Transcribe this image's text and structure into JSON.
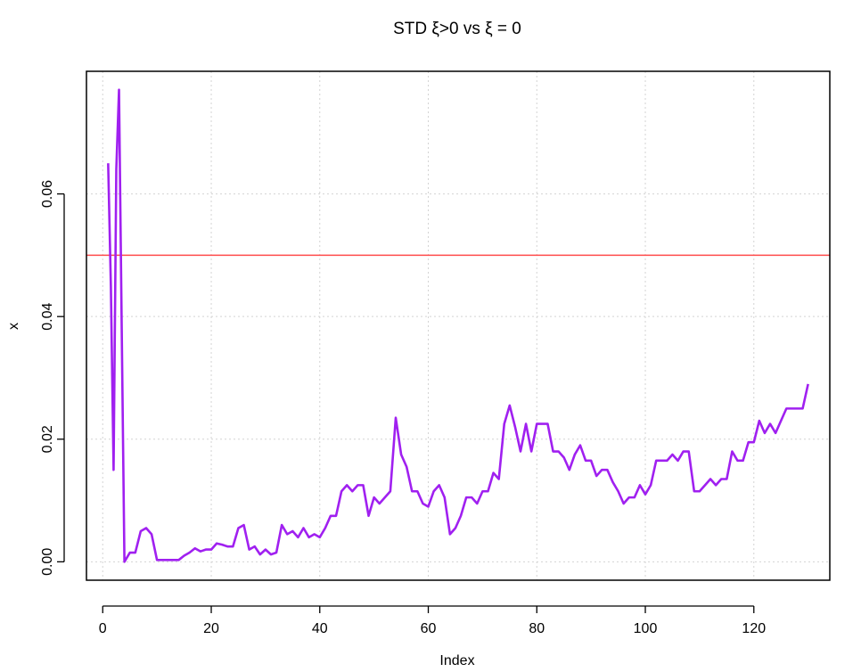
{
  "chart_data": {
    "type": "line",
    "title": "STD ξ>0 vs ξ = 0",
    "xlabel": "Index",
    "ylabel": "x",
    "xlim": [
      -3,
      134
    ],
    "ylim": [
      -0.003,
      0.08
    ],
    "xticks": [
      0,
      20,
      40,
      60,
      80,
      100,
      120
    ],
    "yticks": [
      0.0,
      0.02,
      0.04,
      0.06
    ],
    "ytick_labels": [
      "0.00",
      "0.02",
      "0.04",
      "0.06"
    ],
    "grid": true,
    "reference_line": {
      "y": 0.05,
      "color": "#ff4b4b"
    },
    "series": [
      {
        "color": "#a020f0",
        "x": [
          1,
          1.5,
          2,
          2.5,
          3,
          3.5,
          4,
          5,
          6,
          7,
          8,
          9,
          10,
          11,
          12,
          13,
          14,
          15,
          16,
          17,
          18,
          19,
          20,
          21,
          22,
          23,
          24,
          25,
          26,
          27,
          28,
          29,
          30,
          31,
          32,
          33,
          34,
          35,
          36,
          37,
          38,
          39,
          40,
          41,
          42,
          43,
          44,
          45,
          46,
          47,
          48,
          49,
          50,
          51,
          52,
          53,
          54,
          55,
          56,
          57,
          58,
          59,
          60,
          61,
          62,
          63,
          64,
          65,
          66,
          67,
          68,
          69,
          70,
          71,
          72,
          73,
          74,
          75,
          76,
          77,
          78,
          79,
          80,
          81,
          82,
          83,
          84,
          85,
          86,
          87,
          88,
          89,
          90,
          91,
          92,
          93,
          94,
          95,
          96,
          97,
          98,
          99,
          100,
          101,
          102,
          103,
          104,
          105,
          106,
          107,
          108,
          109,
          110,
          111,
          112,
          113,
          114,
          115,
          116,
          117,
          118,
          119,
          120,
          121,
          122,
          123,
          124,
          125,
          126,
          127,
          128,
          129,
          130
        ],
        "y": [
          0.065,
          0.045,
          0.015,
          0.064,
          0.077,
          0.038,
          0.0,
          0.0015,
          0.0015,
          0.005,
          0.0055,
          0.0045,
          0.0003,
          0.0003,
          0.0003,
          0.0003,
          0.0003,
          0.001,
          0.0015,
          0.0022,
          0.0017,
          0.002,
          0.002,
          0.003,
          0.0028,
          0.0025,
          0.0025,
          0.0055,
          0.006,
          0.002,
          0.0025,
          0.0012,
          0.002,
          0.0012,
          0.0015,
          0.006,
          0.0045,
          0.005,
          0.004,
          0.0055,
          0.004,
          0.0045,
          0.004,
          0.0055,
          0.0075,
          0.0075,
          0.0115,
          0.0125,
          0.0115,
          0.0125,
          0.0125,
          0.0075,
          0.0105,
          0.0095,
          0.0105,
          0.0115,
          0.0235,
          0.0175,
          0.0155,
          0.0115,
          0.0115,
          0.0095,
          0.009,
          0.0115,
          0.0125,
          0.0105,
          0.0045,
          0.0055,
          0.0075,
          0.0105,
          0.0105,
          0.0095,
          0.0115,
          0.0115,
          0.0145,
          0.0135,
          0.0225,
          0.0255,
          0.022,
          0.018,
          0.0225,
          0.018,
          0.0225,
          0.0225,
          0.0225,
          0.018,
          0.018,
          0.017,
          0.015,
          0.0175,
          0.019,
          0.0165,
          0.0165,
          0.014,
          0.015,
          0.015,
          0.013,
          0.0115,
          0.0095,
          0.0105,
          0.0105,
          0.0125,
          0.011,
          0.0125,
          0.0165,
          0.0165,
          0.0165,
          0.0175,
          0.0165,
          0.018,
          0.018,
          0.0115,
          0.0115,
          0.0125,
          0.0135,
          0.0125,
          0.0135,
          0.0135,
          0.018,
          0.0165,
          0.0165,
          0.0195,
          0.0195,
          0.023,
          0.021,
          0.0225,
          0.021,
          0.023,
          0.025,
          0.025,
          0.025,
          0.025,
          0.029
        ]
      }
    ]
  }
}
